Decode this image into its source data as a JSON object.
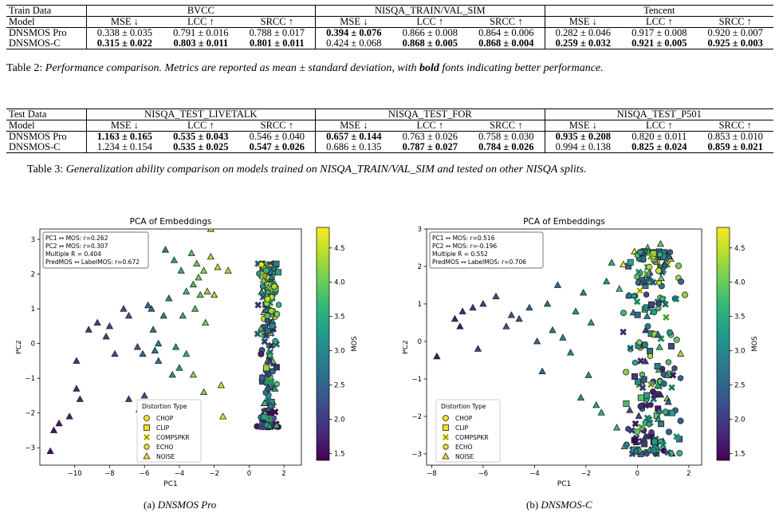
{
  "table2": {
    "header": [
      "Train Data",
      "BVCC",
      "NISQA_TRAIN/VAL_SIM",
      "Tencent"
    ],
    "subheader": [
      "Model",
      "MSE ↓",
      "LCC ↑",
      "SRCC ↑",
      "MSE ↓",
      "LCC ↑",
      "SRCC ↑",
      "MSE ↓",
      "LCC ↑",
      "SRCC ↑"
    ],
    "rows": [
      {
        "model": "DNSMOS Pro",
        "cells": [
          {
            "v": "0.338 ± 0.035",
            "b": false
          },
          {
            "v": "0.791 ± 0.016",
            "b": false
          },
          {
            "v": "0.788 ± 0.017",
            "b": false
          },
          {
            "v": "0.394 ± 0.076",
            "b": true
          },
          {
            "v": "0.866 ± 0.008",
            "b": false
          },
          {
            "v": "0.864 ± 0.006",
            "b": false
          },
          {
            "v": "0.282 ± 0.046",
            "b": false
          },
          {
            "v": "0.917 ± 0.008",
            "b": false
          },
          {
            "v": "0.920 ± 0.007",
            "b": false
          }
        ]
      },
      {
        "model": "DNSMOS-C",
        "cells": [
          {
            "v": "0.315 ± 0.022",
            "b": true
          },
          {
            "v": "0.803 ± 0.011",
            "b": true
          },
          {
            "v": "0.801 ± 0.011",
            "b": true
          },
          {
            "v": "0.424 ± 0.068",
            "b": false
          },
          {
            "v": "0.868 ± 0.005",
            "b": true
          },
          {
            "v": "0.868 ± 0.004",
            "b": true
          },
          {
            "v": "0.259 ± 0.032",
            "b": true
          },
          {
            "v": "0.921 ± 0.005",
            "b": true
          },
          {
            "v": "0.925 ± 0.003",
            "b": true
          }
        ]
      }
    ],
    "caption_label": "Table 2:",
    "caption_text": "Performance comparison. Metrics are reported as mean ± standard deviation, with",
    "caption_bold": "bold",
    "caption_tail": "fonts indicating better performance."
  },
  "table3": {
    "header": [
      "Test Data",
      "NISQA_TEST_LIVETALK",
      "NISQA_TEST_FOR",
      "NISQA_TEST_P501"
    ],
    "subheader": [
      "Model",
      "MSE ↓",
      "LCC ↑",
      "SRCC ↑",
      "MSE ↓",
      "LCC ↑",
      "SRCC ↑",
      "MSE ↓",
      "LCC ↑",
      "SRCC ↑"
    ],
    "rows": [
      {
        "model": "DNSMOS Pro",
        "cells": [
          {
            "v": "1.163 ± 0.165",
            "b": true
          },
          {
            "v": "0.535 ± 0.043",
            "b": true
          },
          {
            "v": "0.546 ± 0.040",
            "b": false
          },
          {
            "v": "0.657 ± 0.144",
            "b": true
          },
          {
            "v": "0.763 ± 0.026",
            "b": false
          },
          {
            "v": "0.758 ± 0.030",
            "b": false
          },
          {
            "v": "0.935 ± 0.208",
            "b": true
          },
          {
            "v": "0.820 ± 0.011",
            "b": false
          },
          {
            "v": "0.853 ± 0.010",
            "b": false
          }
        ]
      },
      {
        "model": "DNSMOS-C",
        "cells": [
          {
            "v": "1.234 ± 0.154",
            "b": false
          },
          {
            "v": "0.535 ± 0.025",
            "b": true
          },
          {
            "v": "0.547 ± 0.026",
            "b": true
          },
          {
            "v": "0.686 ± 0.135",
            "b": false
          },
          {
            "v": "0.787 ± 0.027",
            "b": true
          },
          {
            "v": "0.784 ± 0.026",
            "b": true
          },
          {
            "v": "0.994 ± 0.138",
            "b": false
          },
          {
            "v": "0.825 ± 0.024",
            "b": true
          },
          {
            "v": "0.859 ± 0.021",
            "b": true
          }
        ]
      }
    ],
    "caption_label": "Table 3:",
    "caption_text": "Generalization ability comparison on models trained on NISQA_TRAIN/VAL_SIM and tested on other NISQA splits."
  },
  "chart_data": [
    {
      "type": "scatter",
      "title": "PCA of Embeddings",
      "xlabel": "PC1",
      "ylabel": "PC2",
      "xlim": [
        -12,
        3
      ],
      "ylim": [
        -3.5,
        3.3
      ],
      "xticks": [
        -10,
        -8,
        -6,
        -4,
        -2,
        0,
        2
      ],
      "yticks": [
        -3,
        -2,
        -1,
        0,
        1,
        2,
        3
      ],
      "stats": [
        "PC1 ↔ MOS: r=0.262",
        "PC2 ↔ MOS: r=0.307",
        "Multiple R = 0.404",
        "PredMOS ↔ LabelMOS: r=0.672"
      ],
      "legend_title": "Distortion Type",
      "legend_placement": "lower-center",
      "series_names": [
        "CHOP",
        "CLIP",
        "COMPSPKR",
        "ECHO",
        "NOISE"
      ],
      "colorbar": {
        "label": "MOS",
        "range": [
          1.4,
          4.8
        ],
        "ticks": [
          1.5,
          2.0,
          2.5,
          3.0,
          3.5,
          4.0,
          4.5
        ]
      },
      "cluster": {
        "x_center": 1.1,
        "x_spread": 0.45,
        "y_min": -2.4,
        "y_max": 2.3,
        "count": 220
      },
      "noise_points": [
        {
          "x": -11.4,
          "y": -3.1,
          "mos": 1.5
        },
        {
          "x": -11.2,
          "y": -2.5,
          "mos": 1.6
        },
        {
          "x": -10.9,
          "y": -2.3,
          "mos": 1.6
        },
        {
          "x": -10.3,
          "y": -2.1,
          "mos": 1.7
        },
        {
          "x": -9.9,
          "y": -1.3,
          "mos": 1.8
        },
        {
          "x": -9.7,
          "y": -1.6,
          "mos": 1.8
        },
        {
          "x": -9.9,
          "y": -0.5,
          "mos": 1.9
        },
        {
          "x": -9.2,
          "y": 0.4,
          "mos": 2.0
        },
        {
          "x": -8.7,
          "y": 0.6,
          "mos": 2.0
        },
        {
          "x": -8.2,
          "y": 0.2,
          "mos": 2.1
        },
        {
          "x": -8.0,
          "y": 0.5,
          "mos": 2.1
        },
        {
          "x": -7.7,
          "y": -0.3,
          "mos": 2.2
        },
        {
          "x": -7.2,
          "y": 1.0,
          "mos": 2.3
        },
        {
          "x": -6.9,
          "y": 0.8,
          "mos": 2.3
        },
        {
          "x": -6.9,
          "y": -1.6,
          "mos": 2.0
        },
        {
          "x": -6.3,
          "y": -1.9,
          "mos": 2.1
        },
        {
          "x": -6.4,
          "y": -0.1,
          "mos": 2.4
        },
        {
          "x": -6.1,
          "y": -0.3,
          "mos": 2.5
        },
        {
          "x": -5.8,
          "y": 1.1,
          "mos": 2.6
        },
        {
          "x": -5.6,
          "y": 1.0,
          "mos": 2.6
        },
        {
          "x": -5.5,
          "y": 0.4,
          "mos": 2.7
        },
        {
          "x": -5.4,
          "y": -0.2,
          "mos": 2.8
        },
        {
          "x": -5.2,
          "y": -0.5,
          "mos": 2.7
        },
        {
          "x": -4.9,
          "y": 0.8,
          "mos": 2.9
        },
        {
          "x": -4.8,
          "y": 2.7,
          "mos": 3.0
        },
        {
          "x": -4.6,
          "y": 1.3,
          "mos": 3.1
        },
        {
          "x": -4.4,
          "y": -0.9,
          "mos": 3.2
        },
        {
          "x": -4.2,
          "y": -0.1,
          "mos": 3.3
        },
        {
          "x": -4.3,
          "y": 2.4,
          "mos": 3.4
        },
        {
          "x": -3.9,
          "y": 2.1,
          "mos": 3.6
        },
        {
          "x": -3.8,
          "y": 0.8,
          "mos": 3.5
        },
        {
          "x": -3.6,
          "y": 1.5,
          "mos": 3.7
        },
        {
          "x": -3.6,
          "y": -0.3,
          "mos": 3.6
        },
        {
          "x": -3.3,
          "y": 2.6,
          "mos": 3.9
        },
        {
          "x": -3.2,
          "y": 1.7,
          "mos": 3.8
        },
        {
          "x": -3.1,
          "y": 1.0,
          "mos": 3.9
        },
        {
          "x": -3.0,
          "y": 2.3,
          "mos": 4.0
        },
        {
          "x": -2.9,
          "y": 1.9,
          "mos": 4.1
        },
        {
          "x": -2.8,
          "y": 1.4,
          "mos": 4.0
        },
        {
          "x": -2.6,
          "y": 2.1,
          "mos": 4.2
        },
        {
          "x": -2.5,
          "y": 0.6,
          "mos": 4.1
        },
        {
          "x": -2.4,
          "y": 1.5,
          "mos": 4.3
        },
        {
          "x": -2.2,
          "y": 3.3,
          "mos": 4.3
        },
        {
          "x": -2.2,
          "y": 2.5,
          "mos": 4.4
        },
        {
          "x": -2.0,
          "y": 1.4,
          "mos": 4.4
        },
        {
          "x": -1.8,
          "y": 2.2,
          "mos": 4.5
        },
        {
          "x": -1.6,
          "y": -1.2,
          "mos": 4.6
        },
        {
          "x": -1.5,
          "y": -2.1,
          "mos": 4.6
        },
        {
          "x": -1.2,
          "y": 2.1,
          "mos": 4.4
        },
        {
          "x": -2.6,
          "y": -1.4,
          "mos": 4.2
        },
        {
          "x": -3.2,
          "y": -0.9,
          "mos": 4.2
        },
        {
          "x": -4.0,
          "y": -0.7,
          "mos": 3.4
        },
        {
          "x": -6.0,
          "y": -1.5,
          "mos": 2.2
        },
        {
          "x": -5.2,
          "y": 0.0,
          "mos": 2.9
        }
      ]
    },
    {
      "type": "scatter",
      "title": "PCA of Embeddings",
      "xlabel": "PC1",
      "ylabel": "PC2",
      "xlim": [
        -8.2,
        2.5
      ],
      "ylim": [
        -3.3,
        3.0
      ],
      "xticks": [
        -8,
        -6,
        -4,
        -2,
        0,
        2
      ],
      "yticks": [
        -3,
        -2,
        -1,
        0,
        1,
        2,
        3
      ],
      "stats": [
        "PC1 ↔ MOS: r=0.516",
        "PC2 ↔ MOS: r=-0.196",
        "Multiple R = 0.552",
        "PredMOS ↔ LabelMOS: r=0.706"
      ],
      "legend_title": "Distortion Type",
      "legend_placement": "lower-left",
      "series_names": [
        "CHOP",
        "CLIP",
        "COMPSPKR",
        "ECHO",
        "NOISE"
      ],
      "colorbar": {
        "label": "MOS",
        "range": [
          1.4,
          4.8
        ],
        "ticks": [
          1.5,
          2.0,
          2.5,
          3.0,
          3.5,
          4.0,
          4.5
        ]
      },
      "cluster": {
        "x_center": 0.6,
        "x_spread": 0.85,
        "y_min": -3.0,
        "y_max": 2.4,
        "count": 240
      },
      "noise_points": [
        {
          "x": -7.8,
          "y": -0.4,
          "mos": 1.6
        },
        {
          "x": -7.1,
          "y": 0.6,
          "mos": 1.7
        },
        {
          "x": -6.9,
          "y": 0.4,
          "mos": 1.6
        },
        {
          "x": -6.8,
          "y": 0.8,
          "mos": 1.8
        },
        {
          "x": -6.4,
          "y": 0.9,
          "mos": 1.9
        },
        {
          "x": -6.2,
          "y": -0.2,
          "mos": 2.0
        },
        {
          "x": -6.0,
          "y": 1.0,
          "mos": 2.1
        },
        {
          "x": -5.5,
          "y": 1.2,
          "mos": 2.2
        },
        {
          "x": -5.1,
          "y": 0.4,
          "mos": 2.3
        },
        {
          "x": -4.9,
          "y": 0.7,
          "mos": 2.3
        },
        {
          "x": -4.6,
          "y": 0.6,
          "mos": 2.4
        },
        {
          "x": -4.2,
          "y": 0.9,
          "mos": 2.5
        },
        {
          "x": -3.9,
          "y": 0.0,
          "mos": 2.6
        },
        {
          "x": -3.7,
          "y": -0.8,
          "mos": 2.5
        },
        {
          "x": -3.5,
          "y": 1.0,
          "mos": 2.7
        },
        {
          "x": -3.3,
          "y": 0.3,
          "mos": 2.8
        },
        {
          "x": -3.1,
          "y": 1.5,
          "mos": 2.6
        },
        {
          "x": -2.9,
          "y": 0.1,
          "mos": 2.9
        },
        {
          "x": -2.6,
          "y": -0.3,
          "mos": 3.0
        },
        {
          "x": -2.4,
          "y": 0.8,
          "mos": 3.1
        },
        {
          "x": -2.1,
          "y": 1.3,
          "mos": 3.0
        },
        {
          "x": -1.9,
          "y": -0.9,
          "mos": 3.2
        },
        {
          "x": -1.6,
          "y": -1.7,
          "mos": 3.4
        },
        {
          "x": -1.4,
          "y": -1.9,
          "mos": 3.6
        },
        {
          "x": -1.2,
          "y": 1.6,
          "mos": 3.3
        },
        {
          "x": -1.0,
          "y": 2.1,
          "mos": 3.5
        },
        {
          "x": -0.8,
          "y": -2.3,
          "mos": 3.8
        },
        {
          "x": -0.7,
          "y": 1.4,
          "mos": 3.7
        },
        {
          "x": -2.2,
          "y": -1.5,
          "mos": 3.1
        },
        {
          "x": -1.8,
          "y": 0.5,
          "mos": 3.3
        },
        {
          "x": -0.5,
          "y": -2.8,
          "mos": 3.9
        },
        {
          "x": 0.5,
          "y": -2.9,
          "mos": 4.2
        },
        {
          "x": 0.7,
          "y": -2.8,
          "mos": 4.3
        },
        {
          "x": 0.9,
          "y": 2.6,
          "mos": 4.0
        },
        {
          "x": 0.4,
          "y": 2.5,
          "mos": 3.9
        },
        {
          "x": 1.3,
          "y": 2.2,
          "mos": 4.4
        }
      ]
    }
  ],
  "figure_captions": {
    "a_label": "(a)",
    "a_name": "DNSMOS Pro",
    "b_label": "(b)",
    "b_name": "DNSMOS-C"
  },
  "colors": {
    "viridis": [
      "#440154",
      "#482878",
      "#3e4989",
      "#31688e",
      "#26828e",
      "#1f9e89",
      "#35b779",
      "#6ece58",
      "#b5de2b",
      "#fde725"
    ]
  }
}
